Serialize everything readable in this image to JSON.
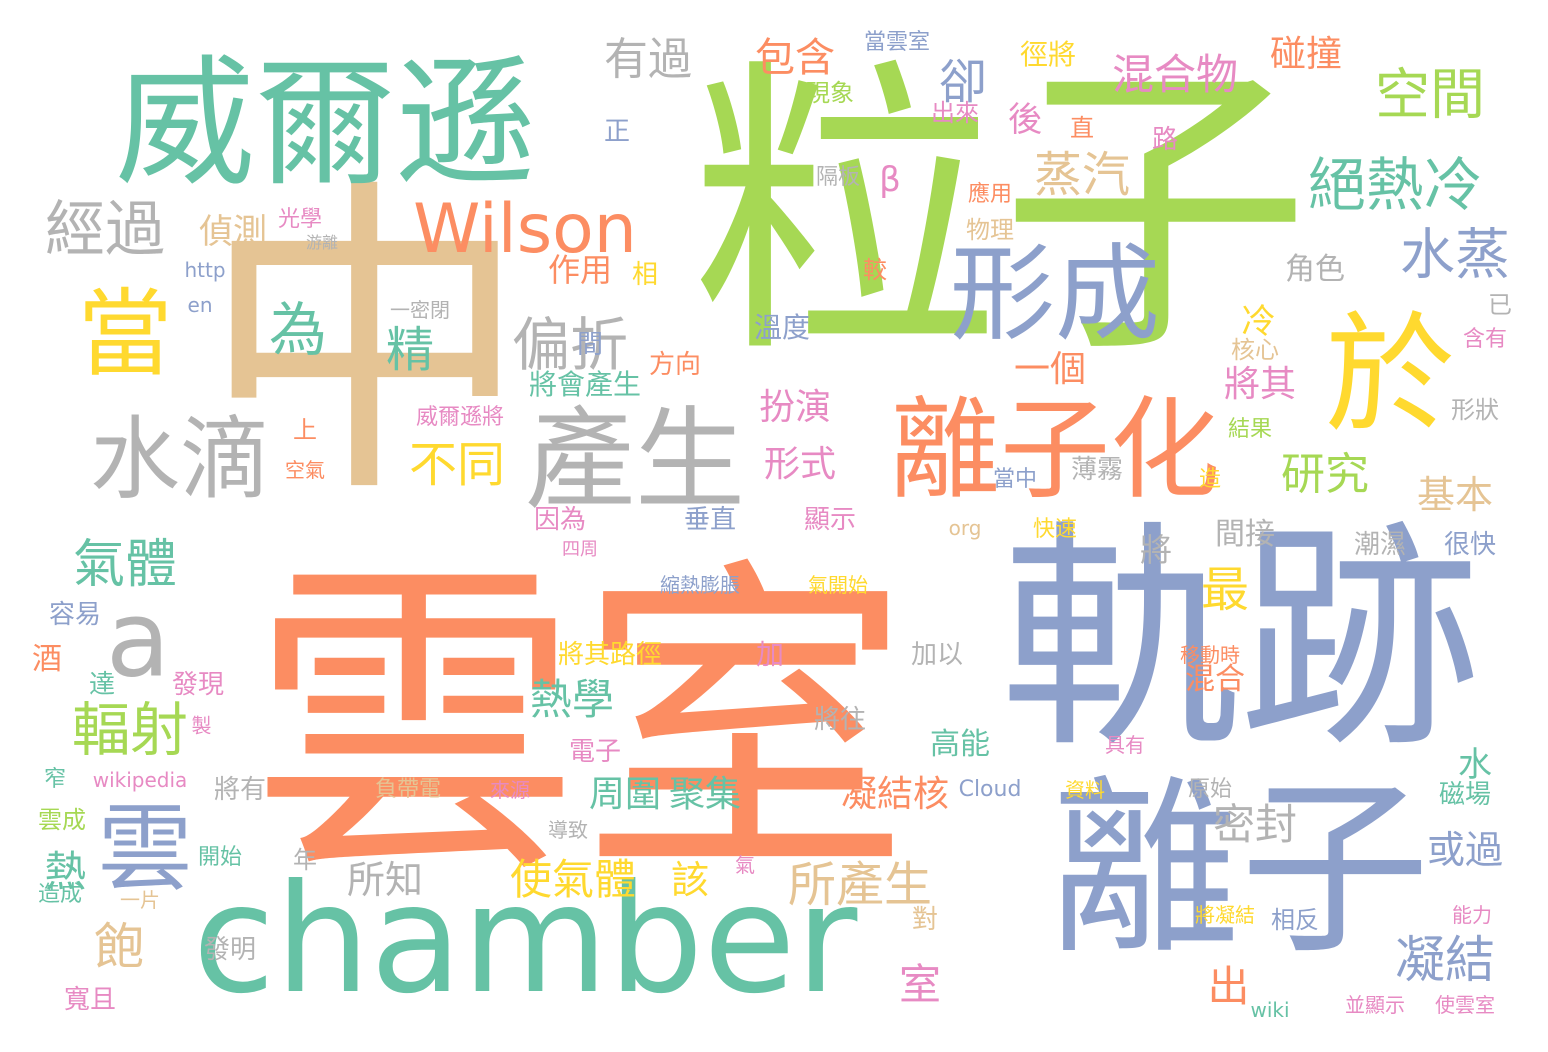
{
  "palette": {
    "teal": "#66c2a5",
    "orange": "#fc8d62",
    "blue": "#8da0cb",
    "pink": "#e78ac3",
    "green": "#a6d854",
    "yellow": "#ffd92f",
    "tan": "#e5c494",
    "gray": "#b3b3b3"
  },
  "words": [
    "粒子",
    "雲室",
    "軌跡",
    "中",
    "離子",
    "chamber",
    "威爾遜",
    "於",
    "離子化",
    "產生",
    "形成",
    "水滴",
    "當",
    "雲",
    "Wilson",
    "絕熱冷",
    "a",
    "水蒸",
    "偏折",
    "為",
    "精",
    "蒸汽",
    "經過",
    "空間",
    "卻",
    "混合物",
    "碰撞",
    "有過",
    "包含",
    "研究",
    "不同",
    "最",
    "氣體",
    "輻射",
    "熱學",
    "凝結",
    "所產生",
    "使氣體",
    "飽",
    "熱",
    "室",
    "出",
    "密封",
    "或過",
    "基本",
    "將其",
    "一個",
    "扮演",
    "形式",
    "凝結核",
    "聚集",
    "周圍",
    "所知",
    "該",
    "高能",
    "水",
    "冷",
    "β",
    "後",
    "偵測",
    "作用",
    "將會產生",
    "角色",
    "間接",
    "將",
    "混合",
    "磁場",
    "很快",
    "潮濕",
    "形狀",
    "已",
    "含有",
    "核心",
    "應用",
    "物理",
    "較",
    "溫度",
    "方向",
    "顯示",
    "垂直",
    "因為",
    "上",
    "空氣",
    "威爾遜將",
    "薄霧",
    "當中",
    "造",
    "結果",
    "快速",
    "原始",
    "資料",
    "具有",
    "能力",
    "相反",
    "將凝結",
    "使雲室",
    "並顯示",
    "wiki",
    "Cloud",
    "對",
    "將往",
    "移動時",
    "加",
    "加以",
    "縮熱膨脹",
    "氣開始",
    "將其路徑",
    "達",
    "發現",
    "製",
    "容易",
    "酒",
    "窄",
    "wikipedia",
    "雲成",
    "造成",
    "開始",
    "一片",
    "發明",
    "寬且",
    "將有",
    "年",
    "負帶電",
    "來源",
    "導致",
    "氣",
    "電子",
    "org",
    "四周",
    "正",
    "現象",
    "出來",
    "隔板",
    "光學",
    "游離",
    "http",
    "en",
    "一密閉",
    "路",
    "直",
    "徑將",
    "當雲室",
    "相",
    "間"
  ]
}
